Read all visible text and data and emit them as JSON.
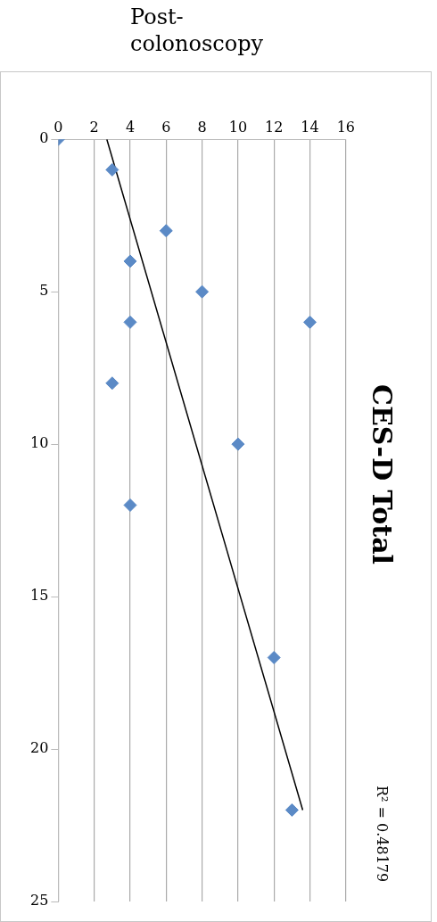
{
  "chart_data": {
    "type": "scatter",
    "title": "CES-D Total",
    "subtitle": "Post-colonoscopy",
    "annotations": [
      "R² = 0.48179"
    ],
    "xlim": [
      0,
      16
    ],
    "xticks": [
      0,
      2,
      4,
      6,
      8,
      10,
      12,
      14,
      16
    ],
    "ylim": [
      25,
      0
    ],
    "yticks": [
      0,
      5,
      10,
      15,
      20,
      25
    ],
    "grid": "x",
    "legend": false,
    "marker": "diamond",
    "series": [
      {
        "color": "#5b8ac6",
        "x": [
          0,
          3,
          6,
          4,
          8,
          4,
          14,
          3,
          10,
          4,
          12,
          13
        ],
        "values": [
          0,
          1,
          3,
          4,
          5,
          6,
          6,
          8,
          10,
          12,
          17,
          22
        ]
      },
      {
        "type": "line",
        "color": "#000000",
        "marker": "none",
        "x": [
          2.7,
          13.6
        ],
        "values": [
          0,
          22
        ]
      }
    ]
  }
}
